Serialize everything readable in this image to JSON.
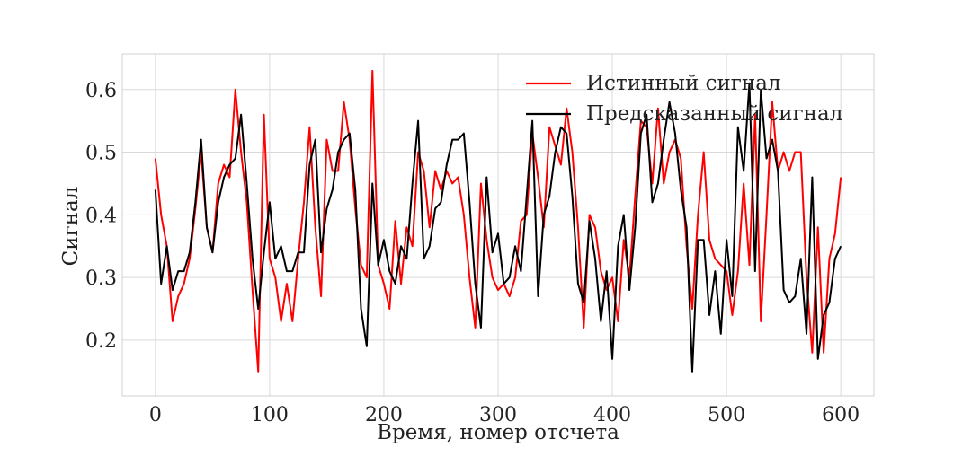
{
  "chart_data": {
    "type": "line",
    "xlabel": "Время, номер отсчета",
    "ylabel": "Сигнал",
    "x": [
      0,
      5,
      10,
      15,
      20,
      25,
      30,
      35,
      40,
      45,
      50,
      55,
      60,
      65,
      70,
      75,
      80,
      85,
      90,
      95,
      100,
      105,
      110,
      115,
      120,
      125,
      130,
      135,
      140,
      145,
      150,
      155,
      160,
      165,
      170,
      175,
      180,
      185,
      190,
      195,
      200,
      205,
      210,
      215,
      220,
      225,
      230,
      235,
      240,
      245,
      250,
      255,
      260,
      265,
      270,
      275,
      280,
      285,
      290,
      295,
      300,
      305,
      310,
      315,
      320,
      325,
      330,
      335,
      340,
      345,
      350,
      355,
      360,
      365,
      370,
      375,
      380,
      385,
      390,
      395,
      400,
      405,
      410,
      415,
      420,
      425,
      430,
      435,
      440,
      445,
      450,
      455,
      460,
      465,
      470,
      475,
      480,
      485,
      490,
      495,
      500,
      505,
      510,
      515,
      520,
      525,
      530,
      535,
      540,
      545,
      550,
      555,
      560,
      565,
      570,
      575,
      580,
      585,
      590,
      595,
      600
    ],
    "series": [
      {
        "name": "Истинный сигнал",
        "color": "#ff0000",
        "values": [
          0.49,
          0.4,
          0.35,
          0.23,
          0.27,
          0.29,
          0.33,
          0.41,
          0.5,
          0.38,
          0.34,
          0.45,
          0.48,
          0.46,
          0.6,
          0.5,
          0.42,
          0.28,
          0.15,
          0.56,
          0.33,
          0.3,
          0.23,
          0.29,
          0.23,
          0.33,
          0.42,
          0.54,
          0.38,
          0.27,
          0.52,
          0.47,
          0.47,
          0.58,
          0.52,
          0.41,
          0.32,
          0.3,
          0.63,
          0.32,
          0.29,
          0.25,
          0.39,
          0.29,
          0.38,
          0.35,
          0.5,
          0.47,
          0.38,
          0.47,
          0.44,
          0.47,
          0.45,
          0.46,
          0.4,
          0.3,
          0.22,
          0.45,
          0.36,
          0.3,
          0.28,
          0.29,
          0.27,
          0.3,
          0.39,
          0.4,
          0.53,
          0.46,
          0.38,
          0.54,
          0.51,
          0.48,
          0.57,
          0.5,
          0.38,
          0.22,
          0.4,
          0.38,
          0.31,
          0.28,
          0.3,
          0.23,
          0.36,
          0.3,
          0.43,
          0.55,
          0.54,
          0.45,
          0.57,
          0.45,
          0.5,
          0.52,
          0.49,
          0.35,
          0.25,
          0.4,
          0.5,
          0.36,
          0.33,
          0.32,
          0.31,
          0.24,
          0.31,
          0.45,
          0.32,
          0.56,
          0.23,
          0.4,
          0.58,
          0.47,
          0.5,
          0.47,
          0.5,
          0.5,
          0.3,
          0.18,
          0.38,
          0.18,
          0.33,
          0.37,
          0.46
        ]
      },
      {
        "name": "Предсказанный сигнал",
        "color": "#000000",
        "values": [
          0.44,
          0.29,
          0.35,
          0.28,
          0.31,
          0.31,
          0.34,
          0.42,
          0.52,
          0.38,
          0.34,
          0.42,
          0.46,
          0.48,
          0.49,
          0.56,
          0.45,
          0.33,
          0.25,
          0.34,
          0.42,
          0.33,
          0.35,
          0.31,
          0.31,
          0.34,
          0.34,
          0.48,
          0.52,
          0.34,
          0.41,
          0.44,
          0.5,
          0.52,
          0.53,
          0.44,
          0.25,
          0.19,
          0.45,
          0.32,
          0.36,
          0.31,
          0.29,
          0.35,
          0.33,
          0.45,
          0.55,
          0.33,
          0.35,
          0.41,
          0.42,
          0.48,
          0.52,
          0.52,
          0.53,
          0.42,
          0.29,
          0.22,
          0.46,
          0.34,
          0.37,
          0.29,
          0.3,
          0.35,
          0.31,
          0.43,
          0.55,
          0.27,
          0.4,
          0.43,
          0.5,
          0.54,
          0.53,
          0.43,
          0.29,
          0.26,
          0.39,
          0.33,
          0.23,
          0.31,
          0.17,
          0.35,
          0.4,
          0.28,
          0.38,
          0.53,
          0.56,
          0.42,
          0.45,
          0.52,
          0.58,
          0.53,
          0.44,
          0.38,
          0.15,
          0.36,
          0.36,
          0.24,
          0.31,
          0.21,
          0.36,
          0.27,
          0.54,
          0.47,
          0.61,
          0.31,
          0.6,
          0.49,
          0.52,
          0.47,
          0.28,
          0.26,
          0.27,
          0.33,
          0.21,
          0.46,
          0.17,
          0.24,
          0.26,
          0.33,
          0.35
        ]
      }
    ],
    "xlim": [
      -29,
      629
    ],
    "ylim": [
      0.111,
      0.657
    ],
    "xticks": [
      0,
      100,
      200,
      300,
      400,
      500,
      600
    ],
    "yticks": [
      0.2,
      0.3,
      0.4,
      0.5,
      0.6
    ],
    "grid": true,
    "legend": "upper right"
  }
}
